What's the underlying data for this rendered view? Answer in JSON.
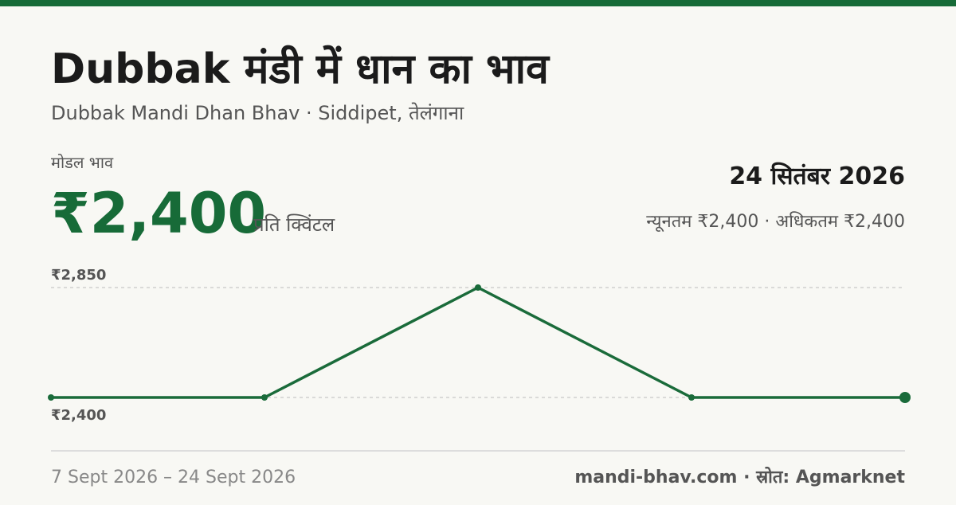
{
  "header": {
    "title": "Dubbak मंडी में धान का भाव",
    "subtitle": "Dubbak Mandi Dhan Bhav · Siddipet, तेलंगाना"
  },
  "price": {
    "label": "मोडल भाव",
    "value": "₹2,400",
    "unit": "प्रति क्विंटल"
  },
  "date": "24 सितंबर 2026",
  "range": "न्यूनतम ₹2,400 · अधिकतम ₹2,400",
  "chart_data": {
    "type": "line",
    "categories": [
      null,
      null,
      null,
      null,
      null
    ],
    "values": [
      2400,
      2400,
      2850,
      2400,
      2400
    ],
    "color": "#1a6b3a",
    "ylim": [
      2400,
      2850
    ],
    "yticks": [
      {
        "value": 2850,
        "label": "₹2,850"
      },
      {
        "value": 2400,
        "label": "₹2,400"
      }
    ],
    "grid": true
  },
  "footer": {
    "dates": "7 Sept 2026 – 24 Sept 2026",
    "source": "mandi-bhav.com · स्रोत: Agmarknet"
  }
}
